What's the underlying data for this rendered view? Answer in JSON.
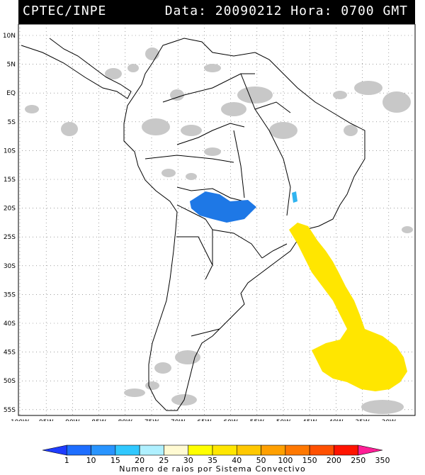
{
  "header": {
    "source": "CPTEC/INPE",
    "datetime": "Data: 20090212 Hora: 0700 GMT"
  },
  "axes": {
    "lat_labels": [
      "10N",
      "5N",
      "EQ",
      "5S",
      "10S",
      "15S",
      "20S",
      "25S",
      "30S",
      "35S",
      "40S",
      "45S",
      "50S",
      "55S"
    ],
    "lon_labels": [
      "100W",
      "95W",
      "90W",
      "85W",
      "80W",
      "75W",
      "70W",
      "65W",
      "60W",
      "55W",
      "50W",
      "45W",
      "40W",
      "35W",
      "30W"
    ]
  },
  "legend": {
    "caption": "Numero de raios por Sistema Convectivo",
    "ticks": [
      "1",
      "10",
      "15",
      "20",
      "25",
      "30",
      "35",
      "40",
      "50",
      "100",
      "150",
      "200",
      "250",
      "350"
    ],
    "colors": [
      "#1e3cff",
      "#1e6eff",
      "#2894ff",
      "#30c8ff",
      "#aff0ff",
      "#fffad2",
      "#ffff00",
      "#ffe600",
      "#ffc800",
      "#ffa000",
      "#ff7800",
      "#ff5000",
      "#ff1400",
      "#ff1e96"
    ]
  },
  "colors": {
    "convective_blue": "#1e78e6",
    "convective_lightblue": "#30b4f0",
    "convective_yellow": "#ffe600",
    "cloud_gray": "#c8c8c8"
  }
}
